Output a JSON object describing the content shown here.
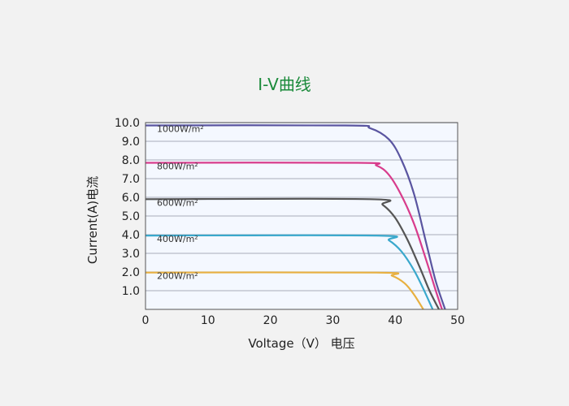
{
  "title": "I-V曲线",
  "colors": {
    "title": "#1a8a3a",
    "plot_background": "#f4f8ff",
    "grid": "#b8bcc6"
  },
  "chart_data": {
    "type": "line",
    "title": "I-V曲线",
    "xlabel": "Voltage（V） 电压",
    "ylabel": "Current(A)电流",
    "xlim": [
      0,
      50
    ],
    "ylim": [
      0,
      10
    ],
    "xticks": [
      "0",
      "10",
      "20",
      "30",
      "40",
      "50"
    ],
    "yticks": [
      "1.0",
      "2.0",
      "3.0",
      "4.0",
      "5.0",
      "6.0",
      "7.0",
      "8.0",
      "9.0",
      "10.0"
    ],
    "grid": true,
    "series": [
      {
        "name": "1000W/m²",
        "color": "#5a55a0",
        "x": [
          0,
          32,
          36,
          39,
          41,
          43,
          45,
          46.5,
          48
        ],
        "y": [
          9.85,
          9.85,
          9.7,
          9.1,
          8.0,
          6.2,
          3.5,
          1.5,
          0
        ]
      },
      {
        "name": "800W/m²",
        "color": "#d83c8c",
        "x": [
          0,
          34,
          37,
          39,
          41,
          43,
          45,
          46.5,
          47.5
        ],
        "y": [
          7.85,
          7.85,
          7.7,
          7.2,
          6.1,
          4.6,
          2.6,
          1.0,
          0
        ]
      },
      {
        "name": "600W/m²",
        "color": "#555555",
        "x": [
          0,
          36,
          38,
          40,
          42,
          44,
          45.5,
          47
        ],
        "y": [
          5.9,
          5.9,
          5.6,
          4.9,
          3.7,
          2.2,
          1.0,
          0
        ]
      },
      {
        "name": "400W/m²",
        "color": "#3aa8cc",
        "x": [
          0,
          37,
          39,
          41,
          43,
          44.5,
          46
        ],
        "y": [
          3.95,
          3.95,
          3.7,
          3.1,
          2.1,
          1.1,
          0
        ]
      },
      {
        "name": "200W/m²",
        "color": "#e8b040",
        "x": [
          0,
          37,
          39.5,
          41.5,
          43,
          44.5
        ],
        "y": [
          1.97,
          1.97,
          1.8,
          1.4,
          0.8,
          0
        ]
      }
    ]
  }
}
